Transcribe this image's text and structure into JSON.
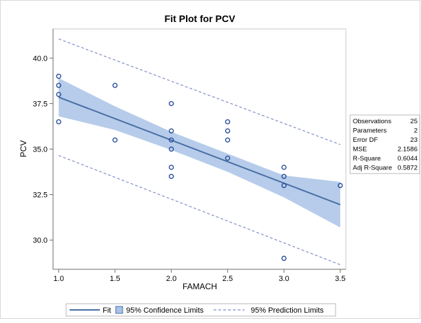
{
  "chart_data": {
    "type": "scatter",
    "title": "Fit Plot for PCV",
    "xlabel": "FAMACH",
    "ylabel": "PCV",
    "xlim": [
      0.95,
      3.55
    ],
    "ylim": [
      28.4,
      41.6
    ],
    "x_ticks": [
      1.0,
      1.5,
      2.0,
      2.5,
      3.0,
      3.5
    ],
    "x_tick_labels": [
      "1.0",
      "1.5",
      "2.0",
      "2.5",
      "3.0",
      "3.5"
    ],
    "y_ticks": [
      30.0,
      32.5,
      35.0,
      37.5,
      40.0
    ],
    "y_tick_labels": [
      "30.0",
      "32.5",
      "35.0",
      "37.5",
      "40.0"
    ],
    "grid": false,
    "series": [
      {
        "kind": "points",
        "points": [
          {
            "x": 1.0,
            "y": 39.0
          },
          {
            "x": 1.0,
            "y": 38.5
          },
          {
            "x": 1.0,
            "y": 38.0
          },
          {
            "x": 1.0,
            "y": 36.5
          },
          {
            "x": 1.5,
            "y": 38.5
          },
          {
            "x": 1.5,
            "y": 35.5
          },
          {
            "x": 2.0,
            "y": 37.5
          },
          {
            "x": 2.0,
            "y": 36.0
          },
          {
            "x": 2.0,
            "y": 35.5
          },
          {
            "x": 2.0,
            "y": 35.0
          },
          {
            "x": 2.0,
            "y": 34.0
          },
          {
            "x": 2.0,
            "y": 33.5
          },
          {
            "x": 2.5,
            "y": 36.5
          },
          {
            "x": 2.5,
            "y": 36.0
          },
          {
            "x": 2.5,
            "y": 35.5
          },
          {
            "x": 2.5,
            "y": 34.5
          },
          {
            "x": 3.0,
            "y": 34.0
          },
          {
            "x": 3.0,
            "y": 33.5
          },
          {
            "x": 3.0,
            "y": 33.0
          },
          {
            "x": 3.0,
            "y": 29.0
          },
          {
            "x": 3.5,
            "y": 33.0
          }
        ]
      },
      {
        "name": "Fit",
        "kind": "line",
        "points": [
          {
            "x": 1.0,
            "y": 37.85
          },
          {
            "x": 3.5,
            "y": 31.95
          }
        ]
      },
      {
        "name": "95% Confidence Limits",
        "kind": "band",
        "points": [
          {
            "x": 1.0,
            "lower": 36.8,
            "upper": 38.9
          },
          {
            "x": 1.5,
            "lower": 36.05,
            "upper": 37.35
          },
          {
            "x": 2.0,
            "lower": 34.95,
            "upper": 35.95
          },
          {
            "x": 2.5,
            "lower": 33.75,
            "upper": 34.75
          },
          {
            "x": 3.0,
            "lower": 32.35,
            "upper": 33.55
          },
          {
            "x": 3.5,
            "lower": 30.7,
            "upper": 33.2
          }
        ]
      },
      {
        "name": "95% Prediction Limits",
        "kind": "dashed-pair",
        "upper": [
          {
            "x": 1.0,
            "y": 41.05
          },
          {
            "x": 3.5,
            "y": 35.25
          }
        ],
        "lower": [
          {
            "x": 1.0,
            "y": 34.65
          },
          {
            "x": 3.5,
            "y": 28.65
          }
        ]
      }
    ],
    "legend": {
      "placement": "bottom",
      "entries": [
        "Fit",
        "95% Confidence Limits",
        "95% Prediction Limits"
      ]
    },
    "stats_table": {
      "placement": "right",
      "rows": [
        {
          "label": "Observations",
          "value": "25"
        },
        {
          "label": "Parameters",
          "value": "2"
        },
        {
          "label": "Error DF",
          "value": "23"
        },
        {
          "label": "MSE",
          "value": "2.1586"
        },
        {
          "label": "R-Square",
          "value": "0.6044"
        },
        {
          "label": "Adj R-Square",
          "value": "0.5872"
        }
      ]
    },
    "colors": {
      "fit_line": "#4a6fa5",
      "band_fill": "#a9c3e6",
      "point_stroke": "#2a4f9a",
      "prediction_line": "#7f8fc9",
      "axis": "#6b6b6b",
      "border": "#c8c8c8"
    }
  }
}
